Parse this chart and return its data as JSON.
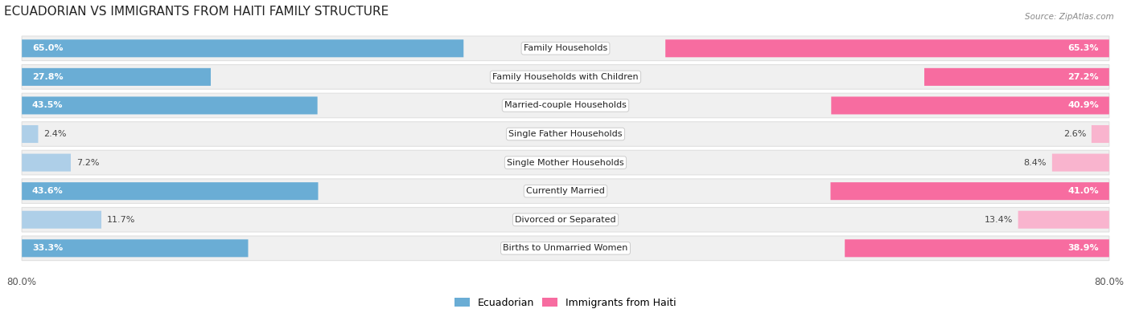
{
  "title": "ECUADORIAN VS IMMIGRANTS FROM HAITI FAMILY STRUCTURE",
  "source": "Source: ZipAtlas.com",
  "categories": [
    "Family Households",
    "Family Households with Children",
    "Married-couple Households",
    "Single Father Households",
    "Single Mother Households",
    "Currently Married",
    "Divorced or Separated",
    "Births to Unmarried Women"
  ],
  "ecuadorian_values": [
    65.0,
    27.8,
    43.5,
    2.4,
    7.2,
    43.6,
    11.7,
    33.3
  ],
  "haiti_values": [
    65.3,
    27.2,
    40.9,
    2.6,
    8.4,
    41.0,
    13.4,
    38.9
  ],
  "max_value": 80.0,
  "color_ecuadorian_dark": "#6aadd5",
  "color_ecuadorian_light": "#aecfe8",
  "color_haiti_dark": "#f76ca0",
  "color_haiti_light": "#f9b4ce",
  "row_background": "#f0f0f0",
  "row_border": "#e0e0e0",
  "label_fontsize": 8.0,
  "title_fontsize": 11,
  "value_fontsize": 8.0,
  "legend_fontsize": 9,
  "axis_label_fontsize": 8.5,
  "dark_threshold": 20.0
}
